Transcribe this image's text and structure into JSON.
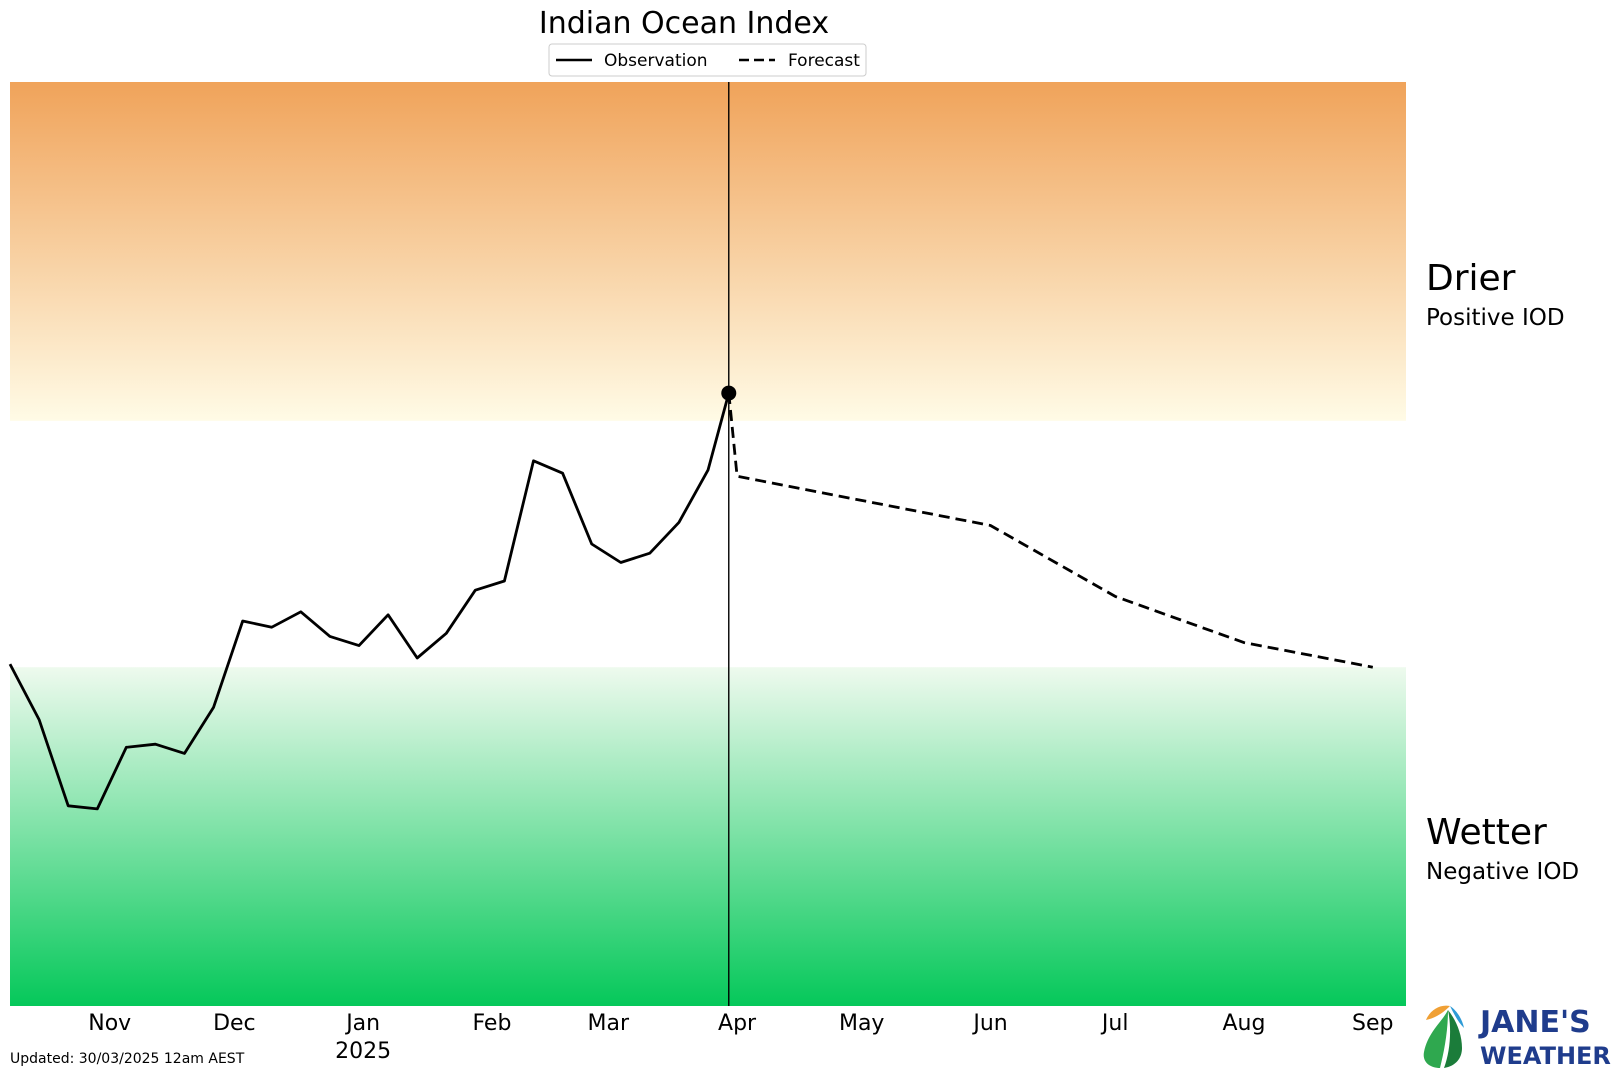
{
  "chart_data": {
    "type": "line",
    "title": "Indian Ocean Index",
    "xlabel": "",
    "ylabel": "",
    "legend": {
      "placement": "top-center",
      "entries": [
        {
          "label": "Observation",
          "style": "solid"
        },
        {
          "label": "Forecast",
          "style": "dashed"
        }
      ]
    },
    "x_ticks": [
      {
        "date": "2024-11-01",
        "label": "Nov",
        "sublabel": ""
      },
      {
        "date": "2024-12-01",
        "label": "Dec",
        "sublabel": ""
      },
      {
        "date": "2025-01-01",
        "label": "Jan",
        "sublabel": "2025"
      },
      {
        "date": "2025-02-01",
        "label": "Feb",
        "sublabel": ""
      },
      {
        "date": "2025-03-01",
        "label": "Mar",
        "sublabel": ""
      },
      {
        "date": "2025-04-01",
        "label": "Apr",
        "sublabel": ""
      },
      {
        "date": "2025-05-01",
        "label": "May",
        "sublabel": ""
      },
      {
        "date": "2025-06-01",
        "label": "Jun",
        "sublabel": ""
      },
      {
        "date": "2025-07-01",
        "label": "Jul",
        "sublabel": ""
      },
      {
        "date": "2025-08-01",
        "label": "Aug",
        "sublabel": ""
      },
      {
        "date": "2025-09-01",
        "label": "Sep",
        "sublabel": ""
      }
    ],
    "xlim": [
      "2024-10-08",
      "2025-09-09"
    ],
    "ylim": [
      -1.5,
      1.5
    ],
    "zones": [
      {
        "label": "Drier",
        "sublabel": "Positive IOD",
        "from": 0.4,
        "to": 1.5,
        "color_far": "#f0a35a",
        "color_near": "#fffbe6"
      },
      {
        "label": "Wetter",
        "sublabel": "Negative IOD",
        "from": -1.5,
        "to": -0.4,
        "color_far": "#05c85a",
        "color_near": "#eefaee"
      }
    ],
    "series": [
      {
        "name": "Observation",
        "style": "solid",
        "color": "#000000",
        "points": [
          {
            "x": "2024-10-08",
            "y": -0.39
          },
          {
            "x": "2024-10-15",
            "y": -0.57
          },
          {
            "x": "2024-10-22",
            "y": -0.85
          },
          {
            "x": "2024-10-29",
            "y": -0.86
          },
          {
            "x": "2024-11-05",
            "y": -0.66
          },
          {
            "x": "2024-11-12",
            "y": -0.65
          },
          {
            "x": "2024-11-19",
            "y": -0.68
          },
          {
            "x": "2024-11-26",
            "y": -0.53
          },
          {
            "x": "2024-12-03",
            "y": -0.25
          },
          {
            "x": "2024-12-10",
            "y": -0.27
          },
          {
            "x": "2024-12-17",
            "y": -0.22
          },
          {
            "x": "2024-12-24",
            "y": -0.3
          },
          {
            "x": "2024-12-31",
            "y": -0.33
          },
          {
            "x": "2025-01-07",
            "y": -0.23
          },
          {
            "x": "2025-01-14",
            "y": -0.37
          },
          {
            "x": "2025-01-21",
            "y": -0.29
          },
          {
            "x": "2025-01-28",
            "y": -0.15
          },
          {
            "x": "2025-02-04",
            "y": -0.12
          },
          {
            "x": "2025-02-11",
            "y": 0.27
          },
          {
            "x": "2025-02-18",
            "y": 0.23
          },
          {
            "x": "2025-02-25",
            "y": 0.0
          },
          {
            "x": "2025-03-04",
            "y": -0.06
          },
          {
            "x": "2025-03-11",
            "y": -0.03
          },
          {
            "x": "2025-03-18",
            "y": 0.07
          },
          {
            "x": "2025-03-25",
            "y": 0.24
          },
          {
            "x": "2025-03-30",
            "y": 0.49
          }
        ]
      },
      {
        "name": "Forecast",
        "style": "dashed",
        "color": "#000000",
        "points": [
          {
            "x": "2025-03-30",
            "y": 0.49
          },
          {
            "x": "2025-04-01",
            "y": 0.22
          },
          {
            "x": "2025-06-01",
            "y": 0.06
          },
          {
            "x": "2025-07-01",
            "y": -0.17
          },
          {
            "x": "2025-08-01",
            "y": -0.32
          },
          {
            "x": "2025-09-01",
            "y": -0.4
          }
        ]
      }
    ],
    "current_marker": {
      "x": "2025-03-30",
      "y": 0.49
    }
  },
  "footer": {
    "updated": "Updated: 30/03/2025 12am AEST"
  },
  "brand": {
    "line1": "JANE'S",
    "line2": "WEATHER",
    "icon": "leaf-droplet-logo",
    "color": "#1f3c8c"
  }
}
